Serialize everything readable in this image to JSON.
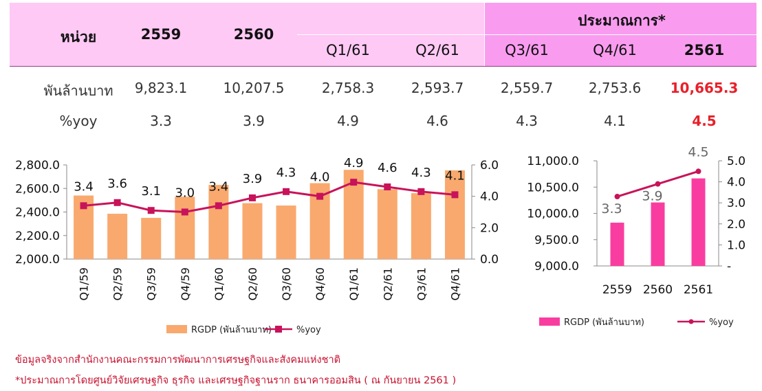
{
  "table": {
    "unit_header": "หน่วย",
    "headers": [
      "2559",
      "2560",
      "Q1/61",
      "Q2/61",
      "Q3/61",
      "Q4/61",
      "2561"
    ],
    "estimate_header": "ประมาณการ*",
    "rows": [
      {
        "label": "พันล้านบาท",
        "values": [
          "9,823.1",
          "10,207.5",
          "2,758.3",
          "2,593.7",
          "2,559.7",
          "2,753.6",
          "10,665.3"
        ]
      },
      {
        "label": "%yoy",
        "values": [
          "3.3",
          "3.9",
          "4.9",
          "4.6",
          "4.3",
          "4.1",
          "4.5"
        ]
      }
    ]
  },
  "chart_data": [
    {
      "type": "bar",
      "categories": [
        "Q1/59",
        "Q2/59",
        "Q3/59",
        "Q4/59",
        "Q1/60",
        "Q2/60",
        "Q3/60",
        "Q4/60",
        "Q1/61",
        "Q2/61",
        "Q3/61",
        "Q4/61"
      ],
      "series": [
        {
          "name": "RGDP (พันล้านบาท)",
          "type": "bar",
          "axis": "left",
          "color": "#f9a96e",
          "values": [
            2540,
            2385,
            2350,
            2530,
            2630,
            2475,
            2455,
            2645,
            2758,
            2594,
            2560,
            2754
          ]
        },
        {
          "name": "%yoy",
          "type": "line",
          "axis": "right",
          "color": "#c8135a",
          "values": [
            3.4,
            3.6,
            3.1,
            3.0,
            3.4,
            3.9,
            4.3,
            4.0,
            4.9,
            4.6,
            4.3,
            4.1
          ],
          "labels": [
            "3.4",
            "3.6",
            "3.1",
            "3.0",
            "3.4",
            "3.9",
            "4.3",
            "4.0",
            "4.9",
            "4.6",
            "4.3",
            "4.1"
          ]
        }
      ],
      "y_left": {
        "min": 2000,
        "max": 2800,
        "ticks": [
          "2,000.0",
          "2,200.0",
          "2,400.0",
          "2,600.0",
          "2,800.0"
        ]
      },
      "y_right": {
        "min": 0,
        "max": 6,
        "ticks": [
          "0.0",
          "2.0",
          "4.0",
          "6.0"
        ]
      },
      "legend_position": "bottom"
    },
    {
      "type": "bar",
      "categories": [
        "2559",
        "2560",
        "2561"
      ],
      "series": [
        {
          "name": "RGDP (พันล้านบาท)",
          "type": "bar",
          "axis": "left",
          "color": "#f93da0",
          "values": [
            9823.1,
            10207.5,
            10665.3
          ]
        },
        {
          "name": "%yoy",
          "type": "line",
          "axis": "right",
          "color": "#c8135a",
          "values": [
            3.3,
            3.9,
            4.5
          ],
          "labels": [
            "3.3",
            "3.9",
            "4.5"
          ]
        }
      ],
      "y_left": {
        "min": 9000,
        "max": 11000,
        "ticks": [
          "9,000.0",
          "9,500.0",
          "10,000.0",
          "10,500.0",
          "11,000.0"
        ]
      },
      "y_right": {
        "min": 0,
        "max": 5,
        "ticks": [
          "-",
          "1.0",
          "2.0",
          "3.0",
          "4.0",
          "5.0"
        ]
      },
      "legend_position": "bottom"
    }
  ],
  "footnotes": [
    "ข้อมูลจริงจากสำนักงานคณะกรรมการพัฒนาการเศรษฐกิจและสังคมแห่งชาติ",
    "*ประมาณการโดยศูนย์วิจัยเศรษฐกิจ ธุรกิจ และเศรษฐกิจฐานราก ธนาคารออมสิน ( ณ กันยายน 2561 )"
  ]
}
